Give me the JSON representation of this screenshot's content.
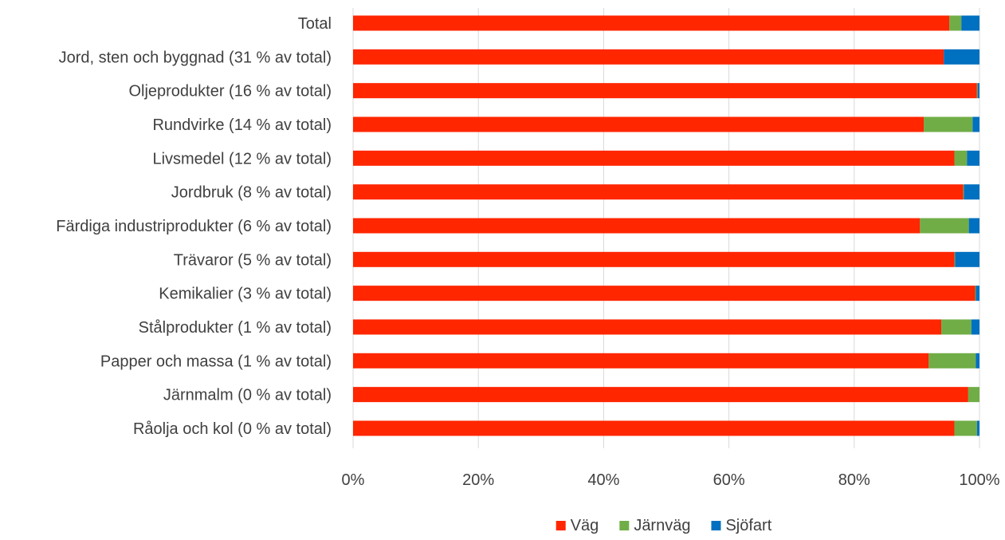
{
  "chart_data": {
    "type": "bar",
    "orientation": "horizontal",
    "stacked": "percent",
    "categories": [
      "Total",
      "Jord, sten och byggnad (31 % av total)",
      "Oljeprodukter (16 % av total)",
      "Rundvirke (14 % av total)",
      "Livsmedel (12 % av total)",
      "Jordbruk (8 % av total)",
      "Färdiga industriprodukter (6 % av total)",
      "Trävaror (5 % av total)",
      "Kemikalier (3 % av total)",
      "Stålprodukter (1 % av total)",
      "Papper och massa (1 % av total)",
      "Järnmalm (0 % av total)",
      "Råolja och kol (0 % av total)"
    ],
    "series": [
      {
        "name": "Väg",
        "color": "#ff2600",
        "values": [
          95.2,
          94.3,
          99.6,
          91.1,
          96.0,
          97.4,
          90.5,
          96.0,
          99.3,
          93.9,
          91.9,
          98.2,
          96.0
        ]
      },
      {
        "name": "Järnväg",
        "color": "#70ad47",
        "values": [
          1.9,
          0.0,
          0.1,
          7.8,
          2.0,
          0.1,
          7.8,
          0.1,
          0.1,
          4.8,
          7.5,
          1.8,
          3.6
        ]
      },
      {
        "name": "Sjöfart",
        "color": "#0070c0",
        "values": [
          2.9,
          5.7,
          0.3,
          1.1,
          2.0,
          2.5,
          1.7,
          3.9,
          0.6,
          1.3,
          0.6,
          0.0,
          0.4
        ]
      }
    ],
    "xlim": [
      0,
      100
    ],
    "x_ticks": [
      "0%",
      "20%",
      "40%",
      "60%",
      "80%",
      "100%"
    ],
    "grid": "vertical",
    "legend": "bottom-center"
  }
}
